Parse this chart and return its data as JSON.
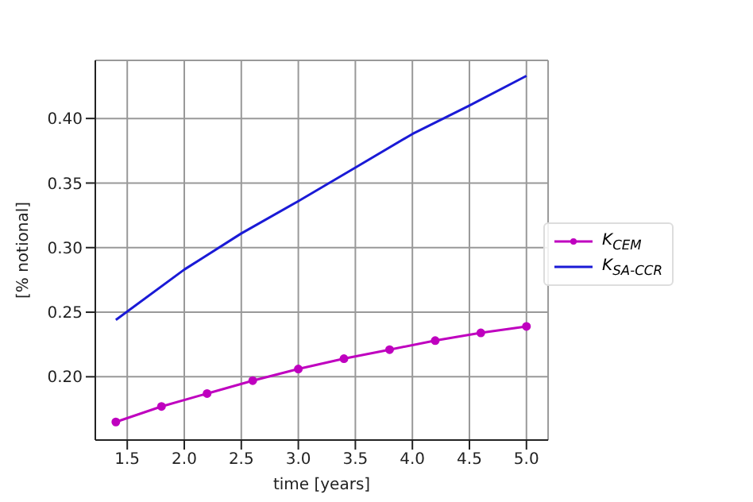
{
  "chart_data": {
    "type": "line",
    "xlabel": "time [years]",
    "ylabel": "[% notional]",
    "xlim": [
      1.22,
      5.19
    ],
    "ylim": [
      0.151,
      0.445
    ],
    "xticks": [
      1.5,
      {
        "value": 2,
        "label": "2.0"
      },
      2.5,
      {
        "value": 3,
        "label": "3.0"
      },
      3.5,
      {
        "value": 4,
        "label": "4.0"
      },
      4.5,
      {
        "value": 5,
        "label": "5.0"
      }
    ],
    "yticks": [
      {
        "value": 0.2,
        "label": "0.20"
      },
      0.25,
      {
        "value": 0.3,
        "label": "0.30"
      },
      0.35,
      {
        "value": 0.4,
        "label": "0.40"
      }
    ],
    "grid": true,
    "legend": "right",
    "series": [
      {
        "name": "K$_{CEM}$",
        "color": "#bf00bf",
        "marker": "circle",
        "x": [
          1.4,
          1.8,
          2.2,
          2.6,
          3.0,
          3.4,
          3.8,
          4.2,
          4.6,
          5.0
        ],
        "values": [
          0.165,
          0.177,
          0.187,
          0.197,
          0.206,
          0.214,
          0.221,
          0.228,
          0.234,
          0.239
        ]
      },
      {
        "name": "K$_{SA-CCR}$",
        "color": "#1a1ad6",
        "marker": "none",
        "x": [
          1.4,
          2.0,
          2.5,
          3.0,
          3.5,
          4.0,
          4.5,
          5.0
        ],
        "values": [
          0.244,
          0.283,
          0.311,
          0.336,
          0.362,
          0.388,
          0.41,
          0.433
        ]
      }
    ]
  }
}
